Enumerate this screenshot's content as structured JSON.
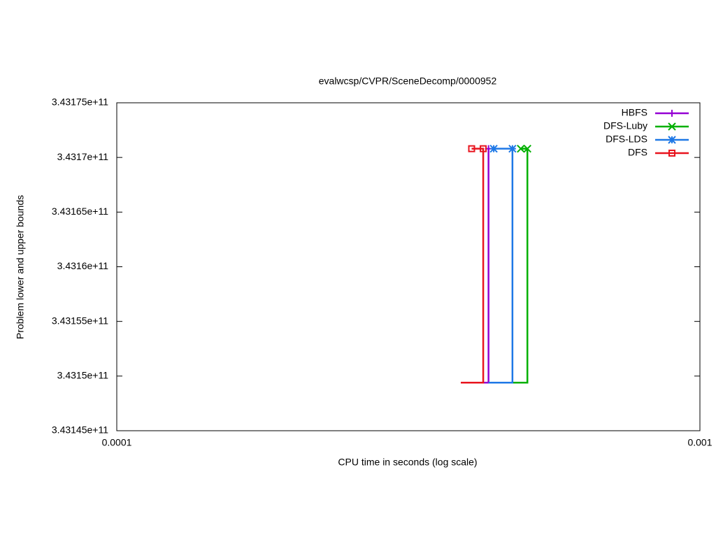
{
  "chart_data": {
    "type": "line",
    "title": "evalwcsp/CVPR/SceneDecomp/0000952",
    "x_label": "CPU time in seconds (log scale)",
    "y_label": "Problem lower and upper bounds",
    "x_log": true,
    "xlim": [
      0.0001,
      0.001
    ],
    "xticks": [
      0.0001,
      0.001
    ],
    "ylim": [
      343145000000,
      343175000000
    ],
    "yticks": [
      {
        "value": 343145000000,
        "label": "3.43145e+11"
      },
      {
        "value": 343150000000,
        "label": "3.4315e+11"
      },
      {
        "value": 343155000000,
        "label": "3.43155e+11"
      },
      {
        "value": 343160000000,
        "label": "3.4316e+11"
      },
      {
        "value": 343165000000,
        "label": "3.43165e+11"
      },
      {
        "value": 343170000000,
        "label": "3.4317e+11"
      },
      {
        "value": 343175000000,
        "label": "3.43175e+11"
      }
    ],
    "legend_position": "top-right",
    "series": [
      {
        "name": "HBFS",
        "color": "#9400d3",
        "marker": "plus",
        "x": [
          0.000425,
          0.000434,
          0.000434
        ],
        "values": [
          343149400000,
          343149400000,
          343170800000
        ],
        "points_x": [
          0.000434
        ],
        "points_values": [
          343170800000
        ]
      },
      {
        "name": "DFS-Luby",
        "color": "#00b000",
        "marker": "cross",
        "x": [
          0.000477,
          0.000506,
          0.000506,
          0.000493
        ],
        "values": [
          343149400000,
          343149400000,
          343170800000,
          343170800000
        ],
        "points_x": [
          0.000493,
          0.000506
        ],
        "points_values": [
          343170800000,
          343170800000
        ]
      },
      {
        "name": "DFS-LDS",
        "color": "#1e78e6",
        "marker": "star",
        "x": [
          0.000434,
          0.000477,
          0.000477,
          0.000443
        ],
        "values": [
          343149400000,
          343149400000,
          343170800000,
          343170800000
        ],
        "points_x": [
          0.000443,
          0.000477
        ],
        "points_values": [
          343170800000,
          343170800000
        ]
      },
      {
        "name": "DFS",
        "color": "#e8141e",
        "marker": "square",
        "x": [
          0.000389,
          0.000425,
          0.000425,
          0.000406
        ],
        "values": [
          343149400000,
          343149400000,
          343170800000,
          343170800000
        ],
        "points_x": [
          0.000406,
          0.000425
        ],
        "points_values": [
          343170800000,
          343170800000
        ]
      }
    ]
  }
}
